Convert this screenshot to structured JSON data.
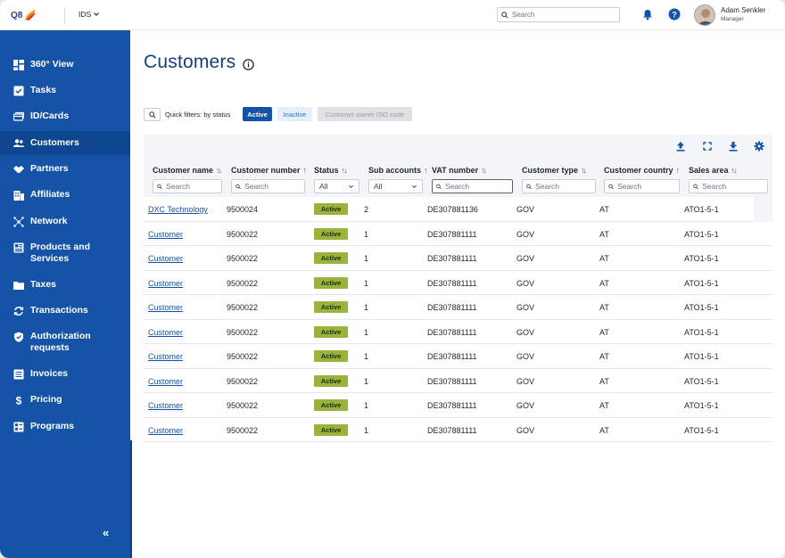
{
  "app": {
    "logo_text": "Q8",
    "org_selector": "IDS",
    "search_placeholder": "Search",
    "user": {
      "name": "Adam Senkler",
      "role": "Manager"
    }
  },
  "sidebar": {
    "items": [
      {
        "label": "360° View",
        "icon": "dashboard-icon"
      },
      {
        "label": "Tasks",
        "icon": "tasks-icon"
      },
      {
        "label": "ID/Cards",
        "icon": "cards-icon"
      },
      {
        "label": "Customers",
        "icon": "customers-icon",
        "active": true
      },
      {
        "label": "Partners",
        "icon": "handshake-icon"
      },
      {
        "label": "Affiliates",
        "icon": "building-icon"
      },
      {
        "label": "Network",
        "icon": "network-icon"
      },
      {
        "label": "Products and Services",
        "icon": "products-icon"
      },
      {
        "label": "Taxes",
        "icon": "folder-icon"
      },
      {
        "label": "Transactions",
        "icon": "sync-icon"
      },
      {
        "label": "Authorization requests",
        "icon": "shield-icon"
      },
      {
        "label": "Invoices",
        "icon": "invoice-icon"
      },
      {
        "label": "Pricing",
        "icon": "dollar-icon"
      },
      {
        "label": "Programs",
        "icon": "programs-icon"
      }
    ],
    "collapse_label": "«"
  },
  "page": {
    "title": "Customers",
    "quick_filters_label": "Quick filters: by status",
    "chips": {
      "active": "Active",
      "inactive": "Inactive",
      "iso": "Customer owner ISO code"
    }
  },
  "table": {
    "columns": [
      "Customer name",
      "Customer number",
      "Status",
      "Sub accounts",
      "VAT number",
      "Customer type",
      "Customer country",
      "Sales area"
    ],
    "filters": {
      "search_placeholder": "Search",
      "status_select": "All",
      "sub_accounts_select": "All"
    },
    "rows": [
      {
        "name": "DXC Technology",
        "number": "9500024",
        "status": "Active",
        "sub": "2",
        "vat": "DE307881136",
        "type": "GOV",
        "country": "AT",
        "area": "ATO1-5-1"
      },
      {
        "name": "Customer",
        "number": "9500022",
        "status": "Active",
        "sub": "1",
        "vat": "DE307881111",
        "type": "GOV",
        "country": "AT",
        "area": "ATO1-5-1"
      },
      {
        "name": "Customer",
        "number": "9500022",
        "status": "Active",
        "sub": "1",
        "vat": "DE307881111",
        "type": "GOV",
        "country": "AT",
        "area": "ATO1-5-1"
      },
      {
        "name": "Customer",
        "number": "9500022",
        "status": "Active",
        "sub": "1",
        "vat": "DE307881111",
        "type": "GOV",
        "country": "AT",
        "area": "ATO1-5-1"
      },
      {
        "name": "Customer",
        "number": "9500022",
        "status": "Active",
        "sub": "1",
        "vat": "DE307881111",
        "type": "GOV",
        "country": "AT",
        "area": "ATO1-5-1"
      },
      {
        "name": "Customer",
        "number": "9500022",
        "status": "Active",
        "sub": "1",
        "vat": "DE307881111",
        "type": "GOV",
        "country": "AT",
        "area": "ATO1-5-1"
      },
      {
        "name": "Customer",
        "number": "9500022",
        "status": "Active",
        "sub": "1",
        "vat": "DE307881111",
        "type": "GOV",
        "country": "AT",
        "area": "ATO1-5-1"
      },
      {
        "name": "Customer",
        "number": "9500022",
        "status": "Active",
        "sub": "1",
        "vat": "DE307881111",
        "type": "GOV",
        "country": "AT",
        "area": "ATO1-5-1"
      },
      {
        "name": "Customer",
        "number": "9500022",
        "status": "Active",
        "sub": "1",
        "vat": "DE307881111",
        "type": "GOV",
        "country": "AT",
        "area": "ATO1-5-1"
      },
      {
        "name": "Customer",
        "number": "9500022",
        "status": "Active",
        "sub": "1",
        "vat": "DE307881111",
        "type": "GOV",
        "country": "AT",
        "area": "ATO1-5-1"
      }
    ]
  },
  "colors": {
    "sidebar": "#1553a7",
    "sidebar_active": "#0f4690",
    "title": "#173f7a",
    "status_active": "#9ab33c"
  }
}
